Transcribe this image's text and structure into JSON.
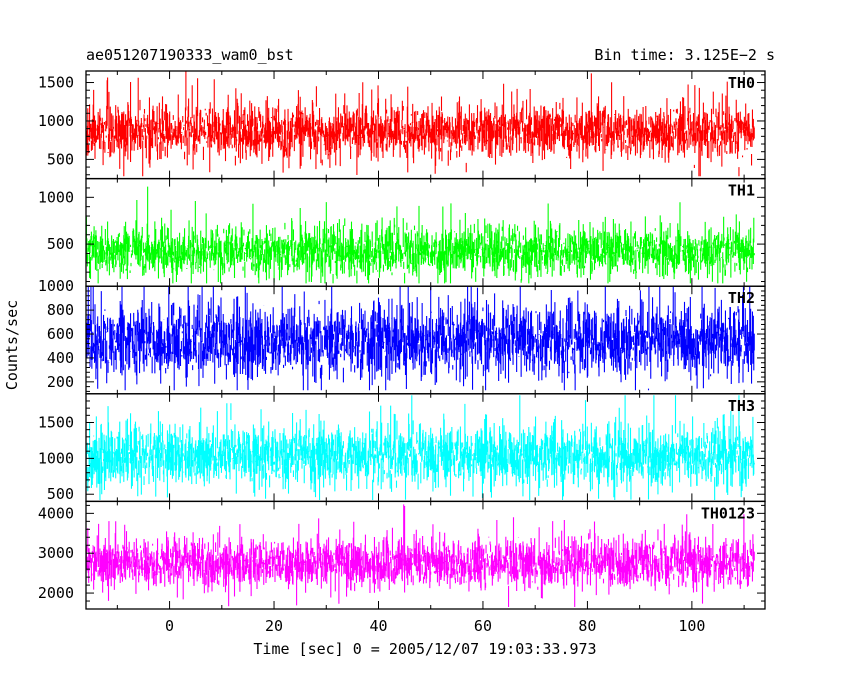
{
  "chart_data": {
    "type": "line",
    "title_left": "ae051207190333_wam0_bst",
    "title_right": "Bin time: 3.125E−2 s",
    "xlabel": "Time [sec] 0 = 2005/12/07 19:03:33.973",
    "ylabel": "Counts/sec",
    "xlim": [
      -16,
      114
    ],
    "x_ticks": [
      0,
      20,
      40,
      60,
      80,
      100
    ],
    "x_range": [
      -16,
      112
    ],
    "bin_time": 0.03125,
    "panels": [
      {
        "name": "TH0",
        "color": "#ff0000",
        "ylim": [
          250,
          1650
        ],
        "yticks": [
          500,
          1000,
          1500
        ],
        "mean": 860,
        "sigma": 170,
        "min": 280,
        "max": 1650
      },
      {
        "name": "TH1",
        "color": "#00ff00",
        "ylim": [
          50,
          1200
        ],
        "yticks": [
          500,
          1000
        ],
        "mean": 420,
        "sigma": 130,
        "min": 80,
        "max": 1120
      },
      {
        "name": "TH2",
        "color": "#0000ff",
        "ylim": [
          100,
          1000
        ],
        "yticks": [
          200,
          400,
          600,
          800,
          1000
        ],
        "mean": 540,
        "sigma": 150,
        "min": 130,
        "max": 1000
      },
      {
        "name": "TH3",
        "color": "#00ffff",
        "ylim": [
          400,
          1900
        ],
        "yticks": [
          500,
          1000,
          1500
        ],
        "mean": 1030,
        "sigma": 200,
        "min": 420,
        "max": 1880
      },
      {
        "name": "TH0123",
        "color": "#ff00ff",
        "ylim": [
          1600,
          4300
        ],
        "yticks": [
          2000,
          3000,
          4000
        ],
        "mean": 2750,
        "sigma": 300,
        "min": 1650,
        "max": 4250
      }
    ]
  }
}
